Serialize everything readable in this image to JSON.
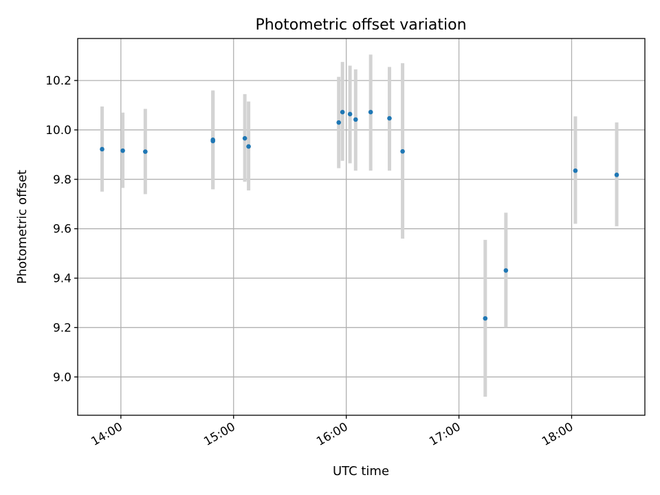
{
  "chart_data": {
    "type": "scatter",
    "title": "Photometric offset variation",
    "xlabel": "UTC time",
    "ylabel": "Photometric offset",
    "xlim": [
      "13:37",
      "18:39"
    ],
    "ylim": [
      8.845,
      10.37
    ],
    "x_ticks": [
      "14:00",
      "15:00",
      "16:00",
      "17:00",
      "18:00"
    ],
    "y_ticks": [
      "9.0",
      "9.2",
      "9.4",
      "9.6",
      "9.8",
      "10.0",
      "10.2"
    ],
    "grid": true,
    "colors": {
      "point": "#1f77b4",
      "errorbar": "#d3d3d3"
    },
    "points": [
      {
        "x": "13:50",
        "y": 9.922,
        "yerr_low": 9.75,
        "yerr_high": 10.095
      },
      {
        "x": "14:01",
        "y": 9.916,
        "yerr_low": 9.765,
        "yerr_high": 10.07
      },
      {
        "x": "14:13",
        "y": 9.912,
        "yerr_low": 9.74,
        "yerr_high": 10.085
      },
      {
        "x": "14:49",
        "y": 9.955,
        "yerr_low": 9.76,
        "yerr_high": 10.155
      },
      {
        "x": "14:49",
        "y": 9.96,
        "yerr_low": 9.76,
        "yerr_high": 10.16
      },
      {
        "x": "15:06",
        "y": 9.966,
        "yerr_low": 9.79,
        "yerr_high": 10.145
      },
      {
        "x": "15:08",
        "y": 9.933,
        "yerr_low": 9.755,
        "yerr_high": 10.115
      },
      {
        "x": "15:56",
        "y": 10.03,
        "yerr_low": 9.845,
        "yerr_high": 10.215
      },
      {
        "x": "15:58",
        "y": 10.072,
        "yerr_low": 9.875,
        "yerr_high": 10.275
      },
      {
        "x": "16:02",
        "y": 10.064,
        "yerr_low": 9.865,
        "yerr_high": 10.26
      },
      {
        "x": "16:05",
        "y": 10.042,
        "yerr_low": 9.835,
        "yerr_high": 10.245
      },
      {
        "x": "16:13",
        "y": 10.072,
        "yerr_low": 9.835,
        "yerr_high": 10.305
      },
      {
        "x": "16:23",
        "y": 10.047,
        "yerr_low": 9.835,
        "yerr_high": 10.255
      },
      {
        "x": "16:30",
        "y": 9.913,
        "yerr_low": 9.56,
        "yerr_high": 10.27
      },
      {
        "x": "17:14",
        "y": 9.237,
        "yerr_low": 8.92,
        "yerr_high": 9.555
      },
      {
        "x": "17:25",
        "y": 9.431,
        "yerr_low": 9.2,
        "yerr_high": 9.665
      },
      {
        "x": "18:02",
        "y": 9.835,
        "yerr_low": 9.62,
        "yerr_high": 10.055
      },
      {
        "x": "18:24",
        "y": 9.818,
        "yerr_low": 9.61,
        "yerr_high": 10.03
      }
    ]
  }
}
